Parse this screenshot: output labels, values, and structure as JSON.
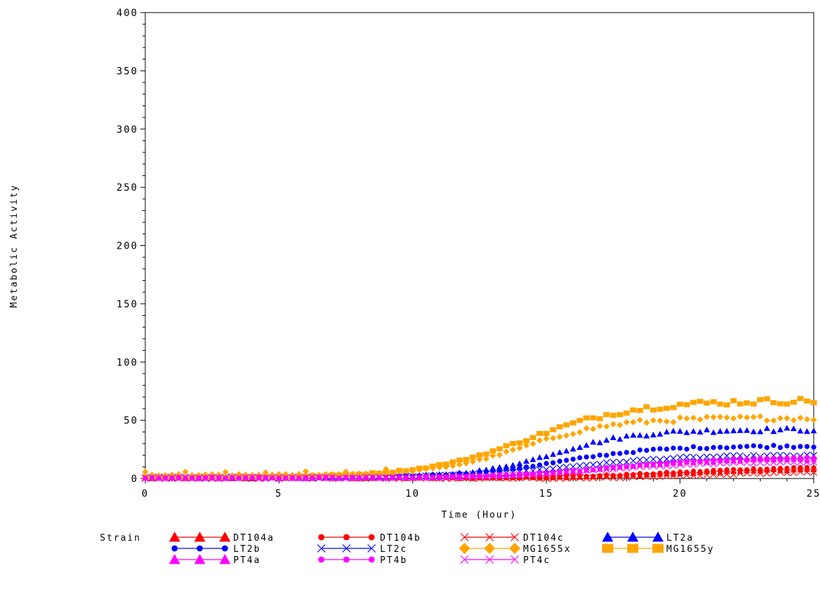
{
  "chart_data": {
    "type": "scatter",
    "xlabel": "Time (Hour)",
    "ylabel": "Metabolic Activity",
    "xlim": [
      0,
      25
    ],
    "ylim": [
      0,
      400
    ],
    "xticks": [
      0,
      5,
      10,
      15,
      20,
      25
    ],
    "yticks": [
      0,
      50,
      100,
      150,
      200,
      250,
      300,
      350,
      400
    ],
    "grid": false,
    "legend_position": "bottom",
    "legend_title": "Strain",
    "series": [
      {
        "name": "DT104a",
        "color": "#ff0000",
        "marker": "triangle",
        "start": 0,
        "plateau": 8,
        "mid": 20,
        "rate": 0.45,
        "baseline": 0.3
      },
      {
        "name": "DT104b",
        "color": "#ff0000",
        "marker": "circle",
        "start": 0,
        "plateau": 10,
        "mid": 20,
        "rate": 0.45,
        "baseline": 0.4
      },
      {
        "name": "DT104c",
        "color": "#ff0000",
        "marker": "x",
        "start": 0,
        "plateau": 6,
        "mid": 21,
        "rate": 0.5,
        "baseline": 0.2
      },
      {
        "name": "LT2a",
        "color": "#0000ff",
        "marker": "triangle",
        "start": 0,
        "plateau": 41,
        "mid": 15.3,
        "rate": 0.65,
        "baseline": 1
      },
      {
        "name": "LT2b",
        "color": "#0000ff",
        "marker": "circle",
        "start": 0,
        "plateau": 27,
        "mid": 15.5,
        "rate": 0.55,
        "baseline": 1
      },
      {
        "name": "LT2c",
        "color": "#0000ff",
        "marker": "x",
        "start": 0,
        "plateau": 19,
        "mid": 16,
        "rate": 0.5,
        "baseline": 0.8
      },
      {
        "name": "MG1655x",
        "color": "#ffa500",
        "marker": "diamond",
        "start": 0,
        "plateau": 49,
        "mid": 14.2,
        "rate": 0.6,
        "baseline": 3
      },
      {
        "name": "MG1655y",
        "color": "#ffa500",
        "marker": "square",
        "start": 0,
        "plateau": 66,
        "mid": 14.3,
        "rate": 0.5,
        "baseline": 1
      },
      {
        "name": "PT4a",
        "color": "#ff00ff",
        "marker": "triangle",
        "start": 0,
        "plateau": 16,
        "mid": 17,
        "rate": 0.5,
        "baseline": 0.5
      },
      {
        "name": "PT4b",
        "color": "#ff00ff",
        "marker": "circle",
        "start": 0,
        "plateau": 18,
        "mid": 17.5,
        "rate": 0.45,
        "baseline": 0.5
      },
      {
        "name": "PT4c",
        "color": "#ff00ff",
        "marker": "x",
        "start": 0,
        "plateau": 14,
        "mid": 17,
        "rate": 0.5,
        "baseline": 0.5
      }
    ]
  }
}
